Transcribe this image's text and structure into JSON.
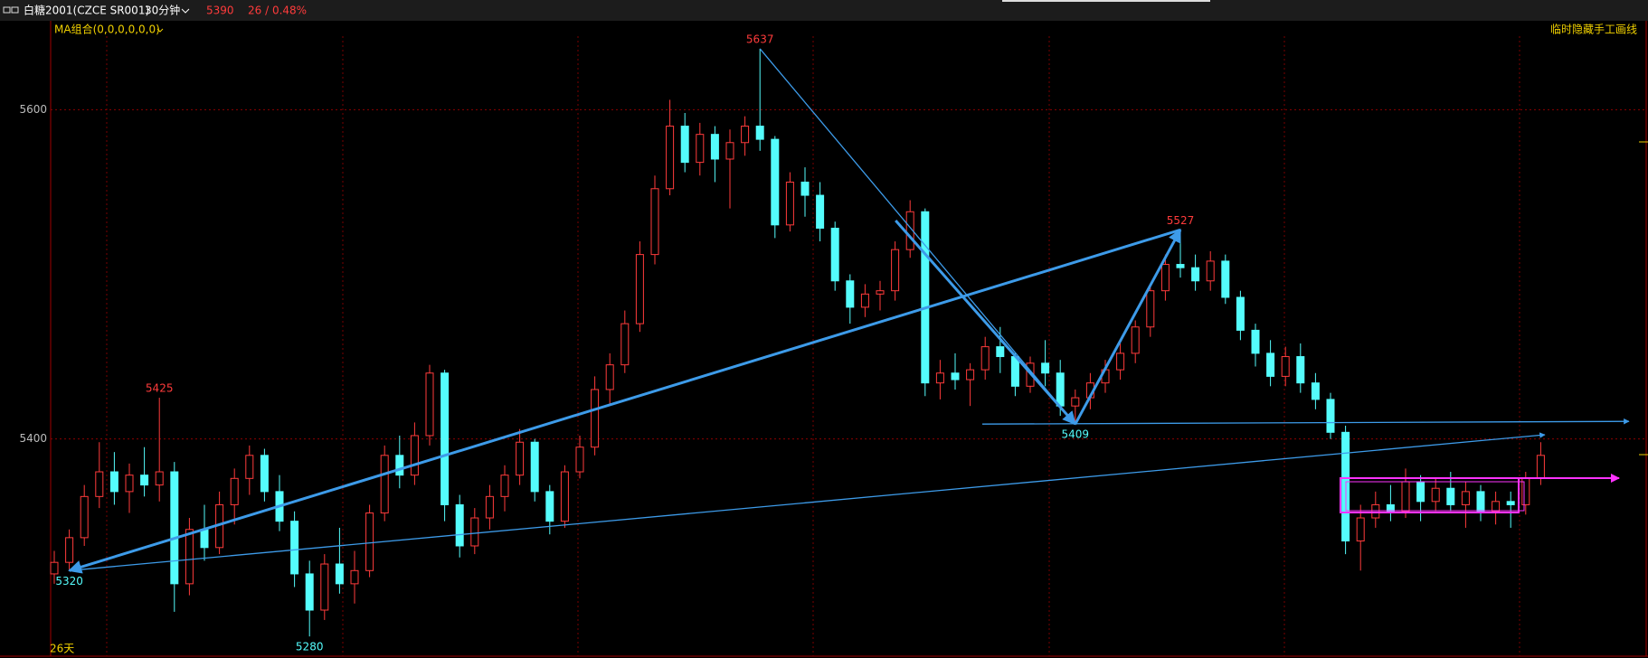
{
  "top_bar": {
    "symbol": "白糖2001(CZCE SR001)",
    "period": "30分钟",
    "last_price": 5390,
    "change": "26 / 0.48%"
  },
  "indicator_label": "MA组合(0,0,0,0,0,0)",
  "toggle_label": "临时隐藏手工画线",
  "range_label": "26天",
  "chart_data": {
    "type": "candlestick",
    "up_color": "#ff3b3b",
    "down_color": "#54fcfc",
    "grid": true,
    "ylim": [
      5268,
      5654
    ],
    "yticks": [
      5400,
      5600
    ],
    "highs_marked": [
      5425,
      5637,
      5527
    ],
    "lows_marked": [
      5280,
      5409,
      5320
    ],
    "open": [
      5318,
      5325,
      5340,
      5365,
      5380,
      5368,
      5378,
      5372,
      5380,
      5312,
      5345,
      5334,
      5360,
      5376,
      5390,
      5368,
      5350,
      5318,
      5296,
      5324,
      5312,
      5320,
      5355,
      5390,
      5378,
      5402,
      5440,
      5360,
      5335,
      5352,
      5365,
      5378,
      5398,
      5368,
      5350,
      5380,
      5395,
      5430,
      5445,
      5470,
      5512,
      5552,
      5590,
      5568,
      5585,
      5570,
      5580,
      5590,
      5582,
      5530,
      5556,
      5548,
      5528,
      5496,
      5480,
      5488,
      5490,
      5515,
      5538,
      5434,
      5440,
      5436,
      5442,
      5456,
      5450,
      5432,
      5446,
      5440,
      5420,
      5425,
      5434,
      5442,
      5452,
      5468,
      5490,
      5506,
      5504,
      5496,
      5508,
      5486,
      5466,
      5452,
      5438,
      5450,
      5434,
      5424,
      5404,
      5338,
      5352,
      5360,
      5356,
      5374,
      5362,
      5370,
      5360,
      5368,
      5356,
      5362,
      5360,
      5376
    ],
    "high": [
      5332,
      5345,
      5372,
      5398,
      5392,
      5385,
      5395,
      5425,
      5386,
      5352,
      5360,
      5368,
      5382,
      5396,
      5394,
      5378,
      5356,
      5326,
      5330,
      5346,
      5332,
      5360,
      5396,
      5402,
      5410,
      5445,
      5442,
      5366,
      5358,
      5372,
      5384,
      5406,
      5400,
      5372,
      5384,
      5402,
      5438,
      5452,
      5478,
      5520,
      5560,
      5606,
      5598,
      5592,
      5590,
      5588,
      5596,
      5637,
      5584,
      5562,
      5565,
      5556,
      5532,
      5500,
      5494,
      5496,
      5520,
      5545,
      5540,
      5448,
      5452,
      5446,
      5462,
      5468,
      5452,
      5450,
      5460,
      5448,
      5430,
      5440,
      5448,
      5458,
      5472,
      5494,
      5512,
      5527,
      5512,
      5514,
      5512,
      5490,
      5470,
      5460,
      5456,
      5458,
      5440,
      5428,
      5408,
      5360,
      5368,
      5372,
      5382,
      5378,
      5376,
      5380,
      5374,
      5372,
      5368,
      5368,
      5380,
      5398
    ],
    "low": [
      5312,
      5320,
      5335,
      5358,
      5360,
      5355,
      5365,
      5362,
      5295,
      5305,
      5326,
      5330,
      5348,
      5366,
      5362,
      5344,
      5310,
      5280,
      5290,
      5306,
      5300,
      5316,
      5350,
      5370,
      5372,
      5396,
      5350,
      5328,
      5330,
      5345,
      5356,
      5372,
      5362,
      5342,
      5346,
      5376,
      5390,
      5420,
      5440,
      5465,
      5506,
      5548,
      5562,
      5560,
      5556,
      5540,
      5572,
      5575,
      5522,
      5526,
      5535,
      5520,
      5490,
      5470,
      5474,
      5478,
      5484,
      5510,
      5426,
      5424,
      5430,
      5420,
      5436,
      5440,
      5426,
      5428,
      5432,
      5414,
      5409,
      5418,
      5428,
      5436,
      5446,
      5462,
      5484,
      5498,
      5490,
      5490,
      5482,
      5460,
      5444,
      5432,
      5432,
      5428,
      5418,
      5400,
      5330,
      5320,
      5346,
      5350,
      5352,
      5350,
      5356,
      5356,
      5346,
      5350,
      5348,
      5346,
      5354,
      5372
    ],
    "close": [
      5325,
      5340,
      5365,
      5380,
      5368,
      5378,
      5372,
      5380,
      5312,
      5345,
      5334,
      5360,
      5376,
      5390,
      5368,
      5350,
      5318,
      5296,
      5324,
      5312,
      5320,
      5355,
      5390,
      5378,
      5402,
      5440,
      5360,
      5335,
      5352,
      5365,
      5378,
      5398,
      5368,
      5350,
      5380,
      5395,
      5430,
      5445,
      5470,
      5512,
      5552,
      5590,
      5568,
      5585,
      5570,
      5580,
      5590,
      5582,
      5530,
      5556,
      5548,
      5528,
      5496,
      5480,
      5488,
      5490,
      5515,
      5538,
      5434,
      5440,
      5436,
      5442,
      5456,
      5450,
      5432,
      5446,
      5440,
      5420,
      5425,
      5434,
      5442,
      5452,
      5468,
      5490,
      5506,
      5504,
      5496,
      5508,
      5486,
      5466,
      5452,
      5438,
      5450,
      5434,
      5424,
      5404,
      5338,
      5352,
      5360,
      5356,
      5374,
      5362,
      5370,
      5360,
      5368,
      5356,
      5362,
      5360,
      5376,
      5390
    ]
  }
}
